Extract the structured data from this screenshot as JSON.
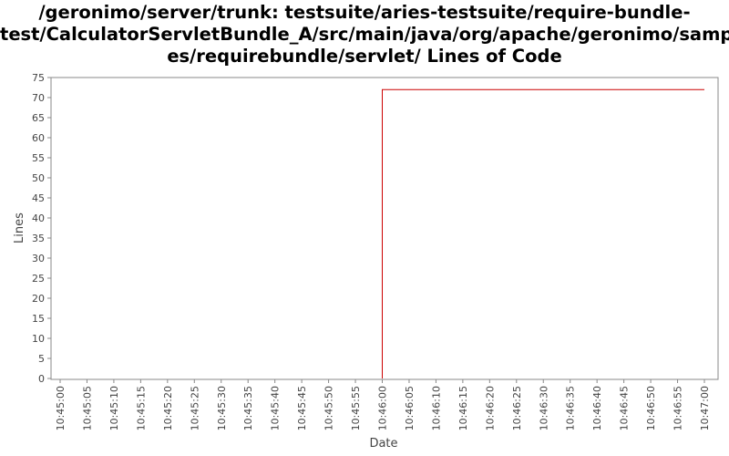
{
  "chart_data": {
    "type": "line",
    "title_lines": [
      "/geronimo/server/trunk: testsuite/aries-testsuite/require-bundle-",
      "test/CalculatorServletBundle_A/src/main/java/org/apache/geronimo/sampl",
      "es/requirebundle/servlet/ Lines of Code"
    ],
    "xlabel": "Date",
    "ylabel": "Lines",
    "x_ticks": [
      "10:45:00",
      "10:45:05",
      "10:45:10",
      "10:45:15",
      "10:45:20",
      "10:45:25",
      "10:45:30",
      "10:45:35",
      "10:45:40",
      "10:45:45",
      "10:45:50",
      "10:45:55",
      "10:46:00",
      "10:46:05",
      "10:46:10",
      "10:46:15",
      "10:46:20",
      "10:46:25",
      "10:46:30",
      "10:46:35",
      "10:46:40",
      "10:46:45",
      "10:46:50",
      "10:46:55",
      "10:47:00"
    ],
    "y_ticks": [
      0,
      5,
      10,
      15,
      20,
      25,
      30,
      35,
      40,
      45,
      50,
      55,
      60,
      65,
      70,
      75
    ],
    "ylim": [
      0,
      75
    ],
    "xlim": [
      "10:45:00",
      "10:47:00"
    ],
    "grid": false,
    "series": [
      {
        "color": "#cc0000",
        "points": [
          {
            "x": "10:46:00",
            "y": 0
          },
          {
            "x": "10:46:00",
            "y": 72
          },
          {
            "x": "10:47:00",
            "y": 72
          }
        ]
      }
    ]
  }
}
